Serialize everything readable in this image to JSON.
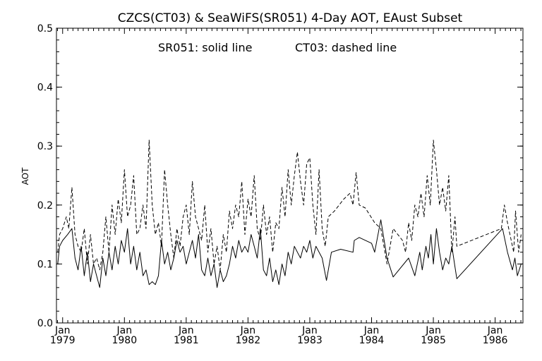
{
  "chart_data": {
    "type": "line",
    "title": "CZCS(CT03) & SeaWiFS(SR051) 4-Day AOT, EAust Subset",
    "annotation_left": "SR051: solid line",
    "annotation_right": "CT03: dashed line",
    "xlabel": "",
    "ylabel": "AOT",
    "xlim": [
      1978.9,
      1986.45
    ],
    "ylim": [
      0.0,
      0.5
    ],
    "grid": false,
    "x_ticks": [
      {
        "value": 1979,
        "line1": "Jan",
        "line2": "1979"
      },
      {
        "value": 1980,
        "line1": "Jan",
        "line2": "1980"
      },
      {
        "value": 1981,
        "line1": "Jan",
        "line2": "1981"
      },
      {
        "value": 1982,
        "line1": "Jan",
        "line2": "1982"
      },
      {
        "value": 1983,
        "line1": "Jan",
        "line2": "1983"
      },
      {
        "value": 1984,
        "line1": "Jan",
        "line2": "1984"
      },
      {
        "value": 1985,
        "line1": "Jan",
        "line2": "1985"
      },
      {
        "value": 1986,
        "line1": "Jan",
        "line2": "1986"
      }
    ],
    "y_ticks": [
      {
        "value": 0.0,
        "label": "0.0"
      },
      {
        "value": 0.1,
        "label": "0.1"
      },
      {
        "value": 0.2,
        "label": "0.2"
      },
      {
        "value": 0.3,
        "label": "0.3"
      },
      {
        "value": 0.4,
        "label": "0.4"
      },
      {
        "value": 0.5,
        "label": "0.5"
      }
    ],
    "series": [
      {
        "name": "SR051",
        "style": "solid",
        "color": "#000000",
        "points": [
          [
            1978.92,
            0.1
          ],
          [
            1978.95,
            0.13
          ],
          [
            1979.0,
            0.14
          ],
          [
            1979.08,
            0.15
          ],
          [
            1979.15,
            0.16
          ],
          [
            1979.2,
            0.11
          ],
          [
            1979.25,
            0.09
          ],
          [
            1979.3,
            0.13
          ],
          [
            1979.35,
            0.08
          ],
          [
            1979.4,
            0.12
          ],
          [
            1979.45,
            0.07
          ],
          [
            1979.5,
            0.1
          ],
          [
            1979.55,
            0.08
          ],
          [
            1979.6,
            0.06
          ],
          [
            1979.65,
            0.11
          ],
          [
            1979.7,
            0.08
          ],
          [
            1979.75,
            0.12
          ],
          [
            1979.8,
            0.09
          ],
          [
            1979.85,
            0.13
          ],
          [
            1979.9,
            0.1
          ],
          [
            1979.95,
            0.14
          ],
          [
            1980.0,
            0.12
          ],
          [
            1980.05,
            0.16
          ],
          [
            1980.1,
            0.1
          ],
          [
            1980.15,
            0.13
          ],
          [
            1980.2,
            0.09
          ],
          [
            1980.25,
            0.12
          ],
          [
            1980.3,
            0.08
          ],
          [
            1980.35,
            0.09
          ],
          [
            1980.4,
            0.065
          ],
          [
            1980.45,
            0.07
          ],
          [
            1980.5,
            0.065
          ],
          [
            1980.55,
            0.08
          ],
          [
            1980.6,
            0.14
          ],
          [
            1980.65,
            0.1
          ],
          [
            1980.7,
            0.12
          ],
          [
            1980.75,
            0.09
          ],
          [
            1980.8,
            0.11
          ],
          [
            1980.85,
            0.14
          ],
          [
            1980.9,
            0.12
          ],
          [
            1980.95,
            0.13
          ],
          [
            1981.0,
            0.1
          ],
          [
            1981.05,
            0.12
          ],
          [
            1981.1,
            0.14
          ],
          [
            1981.15,
            0.11
          ],
          [
            1981.2,
            0.15
          ],
          [
            1981.25,
            0.09
          ],
          [
            1981.3,
            0.08
          ],
          [
            1981.35,
            0.11
          ],
          [
            1981.4,
            0.08
          ],
          [
            1981.45,
            0.1
          ],
          [
            1981.5,
            0.06
          ],
          [
            1981.55,
            0.09
          ],
          [
            1981.6,
            0.07
          ],
          [
            1981.65,
            0.08
          ],
          [
            1981.7,
            0.1
          ],
          [
            1981.75,
            0.13
          ],
          [
            1981.8,
            0.11
          ],
          [
            1981.85,
            0.14
          ],
          [
            1981.9,
            0.12
          ],
          [
            1981.95,
            0.13
          ],
          [
            1982.0,
            0.12
          ],
          [
            1982.05,
            0.15
          ],
          [
            1982.1,
            0.13
          ],
          [
            1982.15,
            0.11
          ],
          [
            1982.2,
            0.16
          ],
          [
            1982.25,
            0.09
          ],
          [
            1982.3,
            0.08
          ],
          [
            1982.35,
            0.11
          ],
          [
            1982.4,
            0.07
          ],
          [
            1982.45,
            0.09
          ],
          [
            1982.5,
            0.065
          ],
          [
            1982.55,
            0.1
          ],
          [
            1982.6,
            0.08
          ],
          [
            1982.65,
            0.12
          ],
          [
            1982.7,
            0.1
          ],
          [
            1982.75,
            0.13
          ],
          [
            1982.8,
            0.12
          ],
          [
            1982.85,
            0.11
          ],
          [
            1982.9,
            0.13
          ],
          [
            1982.95,
            0.12
          ],
          [
            1983.0,
            0.14
          ],
          [
            1983.05,
            0.11
          ],
          [
            1983.1,
            0.13
          ],
          [
            1983.2,
            0.11
          ],
          [
            1983.27,
            0.072
          ],
          [
            1983.35,
            0.12
          ],
          [
            1983.5,
            0.125
          ],
          [
            1983.7,
            0.12
          ],
          [
            1983.72,
            0.14
          ],
          [
            1983.8,
            0.145
          ],
          [
            1984.0,
            0.135
          ],
          [
            1984.05,
            0.12
          ],
          [
            1984.15,
            0.175
          ],
          [
            1984.25,
            0.11
          ],
          [
            1984.35,
            0.078
          ],
          [
            1984.6,
            0.11
          ],
          [
            1984.7,
            0.08
          ],
          [
            1984.78,
            0.12
          ],
          [
            1984.82,
            0.09
          ],
          [
            1984.88,
            0.13
          ],
          [
            1984.92,
            0.11
          ],
          [
            1984.96,
            0.15
          ],
          [
            1985.0,
            0.1
          ],
          [
            1985.05,
            0.16
          ],
          [
            1985.1,
            0.12
          ],
          [
            1985.15,
            0.09
          ],
          [
            1985.2,
            0.11
          ],
          [
            1985.25,
            0.1
          ],
          [
            1985.3,
            0.13
          ],
          [
            1985.35,
            0.095
          ],
          [
            1985.38,
            0.075
          ],
          [
            1986.12,
            0.16
          ],
          [
            1986.2,
            0.12
          ],
          [
            1986.28,
            0.09
          ],
          [
            1986.32,
            0.11
          ],
          [
            1986.36,
            0.08
          ],
          [
            1986.42,
            0.1
          ]
        ]
      },
      {
        "name": "CT03",
        "style": "dashed",
        "color": "#000000",
        "points": [
          [
            1978.92,
            0.12
          ],
          [
            1978.95,
            0.15
          ],
          [
            1979.0,
            0.16
          ],
          [
            1979.06,
            0.18
          ],
          [
            1979.1,
            0.16
          ],
          [
            1979.15,
            0.23
          ],
          [
            1979.2,
            0.15
          ],
          [
            1979.25,
            0.13
          ],
          [
            1979.3,
            0.12
          ],
          [
            1979.35,
            0.16
          ],
          [
            1979.4,
            0.1
          ],
          [
            1979.45,
            0.15
          ],
          [
            1979.5,
            0.1
          ],
          [
            1979.55,
            0.11
          ],
          [
            1979.6,
            0.09
          ],
          [
            1979.65,
            0.12
          ],
          [
            1979.7,
            0.18
          ],
          [
            1979.75,
            0.12
          ],
          [
            1979.8,
            0.2
          ],
          [
            1979.85,
            0.15
          ],
          [
            1979.9,
            0.21
          ],
          [
            1979.95,
            0.17
          ],
          [
            1980.0,
            0.26
          ],
          [
            1980.05,
            0.18
          ],
          [
            1980.1,
            0.2
          ],
          [
            1980.15,
            0.25
          ],
          [
            1980.2,
            0.15
          ],
          [
            1980.25,
            0.16
          ],
          [
            1980.3,
            0.2
          ],
          [
            1980.35,
            0.16
          ],
          [
            1980.4,
            0.31
          ],
          [
            1980.45,
            0.2
          ],
          [
            1980.5,
            0.15
          ],
          [
            1980.55,
            0.17
          ],
          [
            1980.6,
            0.13
          ],
          [
            1980.65,
            0.26
          ],
          [
            1980.7,
            0.2
          ],
          [
            1980.75,
            0.15
          ],
          [
            1980.8,
            0.11
          ],
          [
            1980.85,
            0.16
          ],
          [
            1980.9,
            0.13
          ],
          [
            1980.95,
            0.18
          ],
          [
            1981.0,
            0.2
          ],
          [
            1981.05,
            0.15
          ],
          [
            1981.1,
            0.24
          ],
          [
            1981.15,
            0.18
          ],
          [
            1981.2,
            0.16
          ],
          [
            1981.25,
            0.14
          ],
          [
            1981.3,
            0.2
          ],
          [
            1981.35,
            0.12
          ],
          [
            1981.4,
            0.16
          ],
          [
            1981.45,
            0.1
          ],
          [
            1981.5,
            0.13
          ],
          [
            1981.55,
            0.09
          ],
          [
            1981.6,
            0.15
          ],
          [
            1981.65,
            0.12
          ],
          [
            1981.7,
            0.19
          ],
          [
            1981.75,
            0.16
          ],
          [
            1981.8,
            0.2
          ],
          [
            1981.85,
            0.18
          ],
          [
            1981.9,
            0.24
          ],
          [
            1981.95,
            0.15
          ],
          [
            1982.0,
            0.21
          ],
          [
            1982.05,
            0.18
          ],
          [
            1982.1,
            0.25
          ],
          [
            1982.15,
            0.16
          ],
          [
            1982.2,
            0.14
          ],
          [
            1982.25,
            0.2
          ],
          [
            1982.3,
            0.15
          ],
          [
            1982.35,
            0.18
          ],
          [
            1982.4,
            0.12
          ],
          [
            1982.45,
            0.17
          ],
          [
            1982.5,
            0.16
          ],
          [
            1982.55,
            0.23
          ],
          [
            1982.6,
            0.18
          ],
          [
            1982.65,
            0.26
          ],
          [
            1982.7,
            0.2
          ],
          [
            1982.75,
            0.25
          ],
          [
            1982.8,
            0.29
          ],
          [
            1982.85,
            0.24
          ],
          [
            1982.9,
            0.2
          ],
          [
            1982.95,
            0.27
          ],
          [
            1983.0,
            0.28
          ],
          [
            1983.05,
            0.2
          ],
          [
            1983.1,
            0.15
          ],
          [
            1983.15,
            0.26
          ],
          [
            1983.2,
            0.16
          ],
          [
            1983.25,
            0.13
          ],
          [
            1983.3,
            0.18
          ],
          [
            1983.4,
            0.19
          ],
          [
            1983.55,
            0.21
          ],
          [
            1983.65,
            0.22
          ],
          [
            1983.7,
            0.2
          ],
          [
            1983.75,
            0.255
          ],
          [
            1983.8,
            0.2
          ],
          [
            1983.9,
            0.195
          ],
          [
            1984.05,
            0.17
          ],
          [
            1984.15,
            0.16
          ],
          [
            1984.25,
            0.1
          ],
          [
            1984.35,
            0.16
          ],
          [
            1984.5,
            0.14
          ],
          [
            1984.55,
            0.12
          ],
          [
            1984.6,
            0.17
          ],
          [
            1984.65,
            0.14
          ],
          [
            1984.7,
            0.2
          ],
          [
            1984.75,
            0.18
          ],
          [
            1984.8,
            0.22
          ],
          [
            1984.85,
            0.18
          ],
          [
            1984.9,
            0.25
          ],
          [
            1984.95,
            0.2
          ],
          [
            1985.0,
            0.31
          ],
          [
            1985.05,
            0.26
          ],
          [
            1985.1,
            0.2
          ],
          [
            1985.15,
            0.23
          ],
          [
            1985.2,
            0.19
          ],
          [
            1985.25,
            0.25
          ],
          [
            1985.3,
            0.12
          ],
          [
            1985.35,
            0.18
          ],
          [
            1985.38,
            0.13
          ],
          [
            1985.5,
            0.135
          ],
          [
            1986.1,
            0.16
          ],
          [
            1986.15,
            0.2
          ],
          [
            1986.2,
            0.17
          ],
          [
            1986.3,
            0.12
          ],
          [
            1986.33,
            0.19
          ],
          [
            1986.38,
            0.12
          ],
          [
            1986.42,
            0.15
          ]
        ]
      }
    ]
  }
}
